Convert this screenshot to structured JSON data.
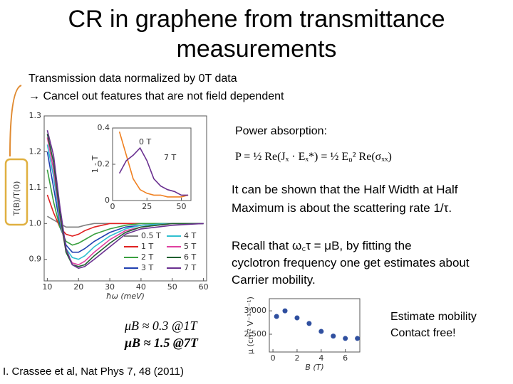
{
  "header": {
    "title": [
      "CR in graphene from transmittance",
      "measurements"
    ]
  },
  "intro": [
    "Transmission data normalized by 0T data",
    "→ Cancel out features that are not field dependent"
  ],
  "power": {
    "label": "Power absorption:",
    "equation": "P = ½ Re(Jₓ · Eₓ*) = ½ E₀² Re(σₓₓ)"
  },
  "hwhm": [
    "It can be shown that the Half Width at Half",
    "Maximum is about the scattering rate 1/τ."
  ],
  "recall": [
    "Recall that  ω꜀τ = μB, by fitting the",
    "cyclotron frequency one get estimates about",
    "Carrier mobility."
  ],
  "estimates": [
    "μB ≈ 0.3 @1T",
    "μB ≈ 1.5 @7T"
  ],
  "note": [
    "Estimate mobility",
    "Contact free!"
  ],
  "citation": "I. Crassee et al, Nat Phys 7, 48 (2011)",
  "chart_data": [
    {
      "type": "line",
      "xlabel": "ħω (meV)",
      "ylabel": "T(B)/T(0)",
      "x": [
        10,
        12,
        14,
        16,
        18,
        20,
        22,
        25,
        30,
        35,
        40,
        50,
        60
      ],
      "xlim": [
        9,
        61
      ],
      "ylim": [
        0.84,
        1.3
      ],
      "xticks": [
        10,
        20,
        30,
        40,
        50,
        60
      ],
      "yticks": [
        0.9,
        {
          "value": 1.0,
          "label": "1.0"
        },
        1.1,
        1.2,
        1.3
      ],
      "series": [
        {
          "name": "0.5 T",
          "color": "#808080",
          "values": [
            1.02,
            1.01,
            1.0,
            0.99,
            0.99,
            0.99,
            0.995,
            1.0,
            1.0,
            1.0,
            1.0,
            1.0,
            1.0
          ]
        },
        {
          "name": "1 T",
          "color": "#e02020",
          "values": [
            1.08,
            1.03,
            0.99,
            0.97,
            0.965,
            0.97,
            0.98,
            0.99,
            1.0,
            1.0,
            1.0,
            1.0,
            1.0
          ]
        },
        {
          "name": "2 T",
          "color": "#3aa040",
          "values": [
            1.15,
            1.06,
            0.99,
            0.95,
            0.94,
            0.945,
            0.955,
            0.97,
            0.985,
            0.995,
            1.0,
            1.0,
            1.0
          ]
        },
        {
          "name": "3 T",
          "color": "#2040b0",
          "values": [
            1.2,
            1.1,
            1.0,
            0.94,
            0.92,
            0.92,
            0.93,
            0.95,
            0.975,
            0.99,
            0.995,
            1.0,
            1.0
          ]
        },
        {
          "name": "4 T",
          "color": "#30c0d0",
          "values": [
            1.22,
            1.13,
            1.01,
            0.93,
            0.905,
            0.9,
            0.91,
            0.935,
            0.965,
            0.985,
            0.995,
            1.0,
            1.0
          ]
        },
        {
          "name": "5 T",
          "color": "#e040a0",
          "values": [
            1.24,
            1.15,
            1.02,
            0.92,
            0.89,
            0.885,
            0.895,
            0.92,
            0.955,
            0.98,
            0.99,
            1.0,
            1.0
          ]
        },
        {
          "name": "6 T",
          "color": "#206030",
          "values": [
            1.25,
            1.17,
            1.03,
            0.92,
            0.885,
            0.88,
            0.885,
            0.91,
            0.945,
            0.975,
            0.99,
            1.0,
            1.0
          ]
        },
        {
          "name": "7 T",
          "color": "#6a3090",
          "values": [
            1.26,
            1.19,
            1.05,
            0.93,
            0.885,
            0.875,
            0.88,
            0.9,
            0.935,
            0.97,
            0.985,
            0.995,
            1.0
          ]
        }
      ]
    },
    {
      "type": "line",
      "ylabel": "1 - T",
      "x": [
        5,
        10,
        15,
        20,
        25,
        30,
        35,
        40,
        45,
        50,
        55
      ],
      "xlim": [
        0,
        57
      ],
      "ylim": [
        0,
        0.4
      ],
      "xticks": [
        0,
        25,
        50
      ],
      "yticks": [
        0,
        0.2,
        0.4
      ],
      "series": [
        {
          "name": "0 T",
          "color": "#f08020",
          "values": [
            0.38,
            0.25,
            0.12,
            0.06,
            0.04,
            0.03,
            0.03,
            0.02,
            0.02,
            0.02,
            0.03
          ]
        },
        {
          "name": "7 T",
          "color": "#6a3090",
          "values": [
            0.15,
            0.22,
            0.25,
            0.29,
            0.22,
            0.12,
            0.08,
            0.06,
            0.05,
            0.03,
            0.03
          ]
        }
      ]
    },
    {
      "type": "scatter",
      "xlabel": "B (T)",
      "ylabel": "μ (cm² V⁻¹ s⁻¹)",
      "color": "#2f4f9f",
      "x": [
        0.3,
        1,
        2,
        3,
        4,
        5,
        6,
        7
      ],
      "values": [
        2880,
        3000,
        2850,
        2730,
        2560,
        2460,
        2410,
        2410
      ],
      "xlim": [
        -0.3,
        7.2
      ],
      "ylim": [
        2120,
        3260
      ],
      "xticks": [
        0,
        2,
        4,
        6
      ],
      "yticks": [
        {
          "value": 2500,
          "label": "2,500"
        },
        {
          "value": 3000,
          "label": "3,000"
        }
      ]
    }
  ]
}
